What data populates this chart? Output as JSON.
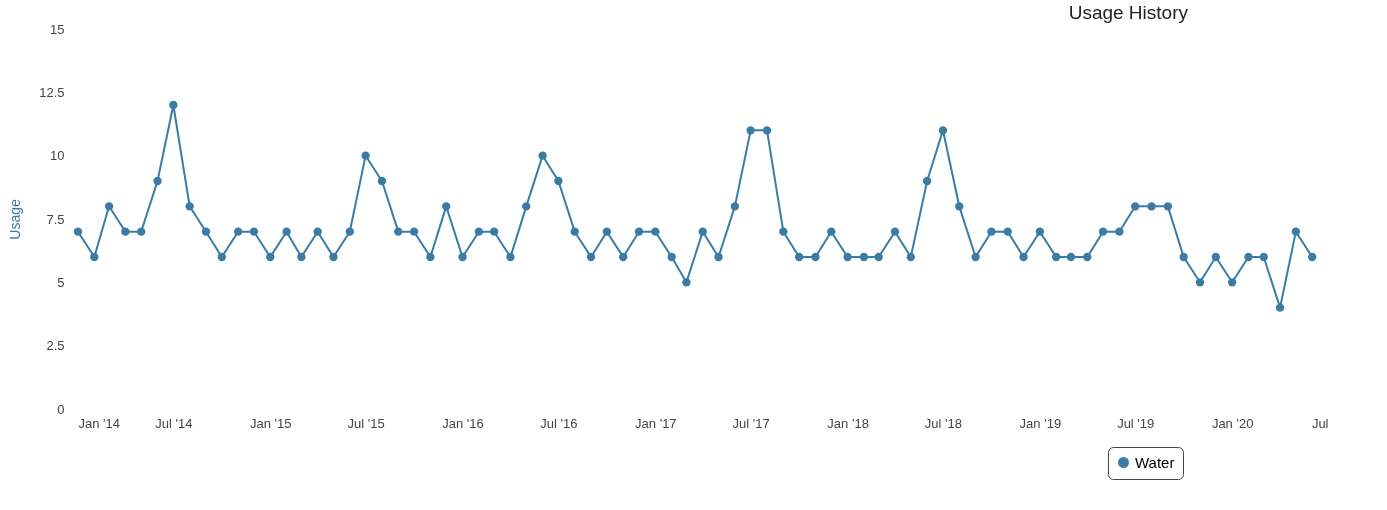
{
  "chart_data": {
    "type": "line",
    "title": "Usage History",
    "ylabel": "Usage",
    "x": [
      "2014-01",
      "2014-02",
      "2014-03",
      "2014-04",
      "2014-05",
      "2014-06",
      "2014-07",
      "2014-08",
      "2014-09",
      "2014-10",
      "2014-11",
      "2014-12",
      "2015-01",
      "2015-02",
      "2015-03",
      "2015-04",
      "2015-05",
      "2015-06",
      "2015-07",
      "2015-08",
      "2015-09",
      "2015-10",
      "2015-11",
      "2015-12",
      "2016-01",
      "2016-02",
      "2016-03",
      "2016-04",
      "2016-05",
      "2016-06",
      "2016-07",
      "2016-08",
      "2016-09",
      "2016-10",
      "2016-11",
      "2016-12",
      "2017-01",
      "2017-02",
      "2017-03",
      "2017-04",
      "2017-05",
      "2017-06",
      "2017-07",
      "2017-08",
      "2017-09",
      "2017-10",
      "2017-11",
      "2017-12",
      "2018-01",
      "2018-02",
      "2018-03",
      "2018-04",
      "2018-05",
      "2018-06",
      "2018-07",
      "2018-08",
      "2018-09",
      "2018-10",
      "2018-11",
      "2018-12",
      "2019-01",
      "2019-02",
      "2019-03",
      "2019-04",
      "2019-05",
      "2019-06",
      "2019-07",
      "2019-08",
      "2019-09",
      "2019-10",
      "2019-11",
      "2019-12",
      "2020-01",
      "2020-02",
      "2020-03",
      "2020-04",
      "2020-05",
      "2020-06"
    ],
    "series": [
      {
        "name": "Water",
        "color": "#3a7ca5",
        "values": [
          7,
          6,
          8,
          7,
          7,
          9,
          12,
          8,
          7,
          6,
          7,
          7,
          6,
          7,
          6,
          7,
          6,
          7,
          10,
          9,
          7,
          7,
          6,
          8,
          6,
          7,
          7,
          6,
          8,
          10,
          9,
          7,
          6,
          7,
          6,
          7,
          7,
          6,
          5,
          7,
          6,
          8,
          11,
          11,
          7,
          6,
          6,
          7,
          6,
          6,
          6,
          7,
          6,
          9,
          11,
          8,
          6,
          7,
          7,
          6,
          7,
          6,
          6,
          6,
          7,
          7,
          8,
          8,
          8,
          6,
          5,
          6,
          5,
          6,
          6,
          4,
          7,
          6
        ]
      }
    ],
    "xlim": [
      "2014-01",
      "2020-07"
    ],
    "xticks": [
      {
        "value": "2014-01",
        "label": "Jan '14"
      },
      {
        "value": "2014-07",
        "label": "Jul '14"
      },
      {
        "value": "2015-01",
        "label": "Jan '15"
      },
      {
        "value": "2015-07",
        "label": "Jul '15"
      },
      {
        "value": "2016-01",
        "label": "Jan '16"
      },
      {
        "value": "2016-07",
        "label": "Jul '16"
      },
      {
        "value": "2017-01",
        "label": "Jan '17"
      },
      {
        "value": "2017-07",
        "label": "Jul '17"
      },
      {
        "value": "2018-01",
        "label": "Jan '18"
      },
      {
        "value": "2018-07",
        "label": "Jul '18"
      },
      {
        "value": "2019-01",
        "label": "Jan '19"
      },
      {
        "value": "2019-07",
        "label": "Jul '19"
      },
      {
        "value": "2020-01",
        "label": "Jan '20"
      },
      {
        "value": "2020-07",
        "label": "Jul"
      }
    ],
    "ylim": [
      0,
      15
    ],
    "yticks": [
      0,
      2.5,
      5,
      7.5,
      10,
      12.5,
      15
    ],
    "grid": false,
    "legend": "bottom",
    "marker": "circle",
    "line_style": "solid"
  }
}
